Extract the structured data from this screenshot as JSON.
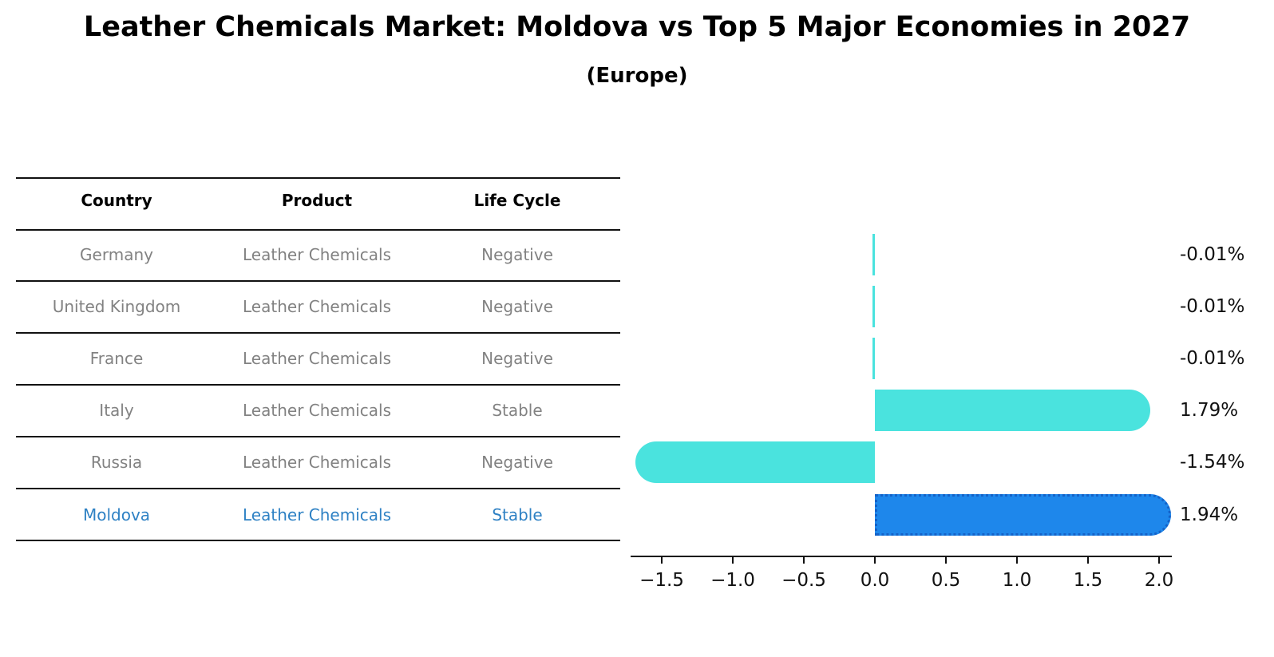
{
  "title": "Leather Chemicals Market: Moldova vs Top 5 Major Economies in 2027",
  "subtitle": "(Europe)",
  "colors": {
    "bar_cyan": "#4ae3de",
    "bar_blue": "#1e87eb",
    "bar_blue_border": "#1462c8",
    "row_text": "#828282",
    "highlight_text": "#2e81c4",
    "axis": "#111111",
    "background": "#ffffff"
  },
  "table": {
    "headers": [
      "Country",
      "Product",
      "Life Cycle"
    ],
    "rows": [
      {
        "country": "Germany",
        "product": "Leather Chemicals",
        "life_cycle": "Negative",
        "highlight": false
      },
      {
        "country": "United Kingdom",
        "product": "Leather Chemicals",
        "life_cycle": "Negative",
        "highlight": false
      },
      {
        "country": "France",
        "product": "Leather Chemicals",
        "life_cycle": "Negative",
        "highlight": false
      },
      {
        "country": "Italy",
        "product": "Leather Chemicals",
        "life_cycle": "Stable",
        "highlight": false
      },
      {
        "country": "Russia",
        "product": "Leather Chemicals",
        "life_cycle": "Negative",
        "highlight": false
      },
      {
        "country": "Moldova",
        "product": "Leather Chemicals",
        "life_cycle": "Stable",
        "highlight": true
      }
    ]
  },
  "chart_data": {
    "type": "bar",
    "orientation": "horizontal",
    "title": "Leather Chemicals Market: Moldova vs Top 5 Major Economies in 2027 (Europe)",
    "categories": [
      "Germany",
      "United Kingdom",
      "France",
      "Italy",
      "Russia",
      "Moldova"
    ],
    "values": [
      -0.01,
      -0.01,
      -0.01,
      1.79,
      -1.54,
      1.94
    ],
    "value_labels": [
      "-0.01%",
      "-0.01%",
      "-0.01%",
      "1.79%",
      "-1.54%",
      "1.94%"
    ],
    "highlight_index": 5,
    "xlabel": "",
    "ylabel": "",
    "xlim": [
      -1.72,
      2.09
    ],
    "xticks": [
      -1.5,
      -1.0,
      -0.5,
      0.0,
      0.5,
      1.0,
      1.5,
      2.0
    ],
    "xtick_labels": [
      "−1.5",
      "−1.0",
      "−0.5",
      "0.0",
      "0.5",
      "1.0",
      "1.5",
      "2.0"
    ],
    "grid": false,
    "legend": false
  }
}
